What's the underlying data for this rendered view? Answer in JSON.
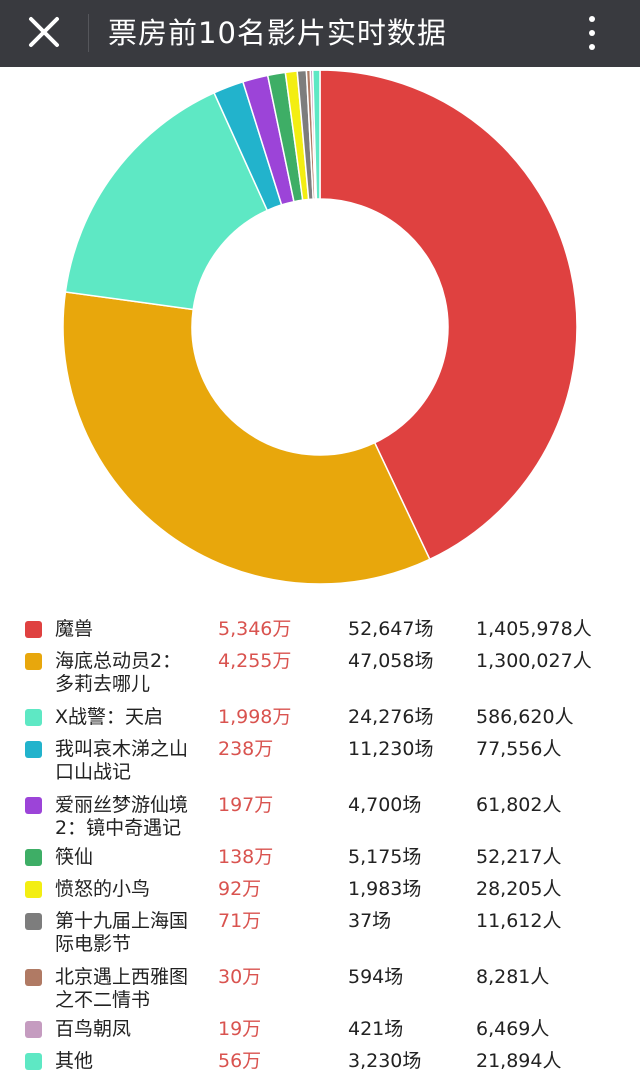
{
  "header": {
    "title": "票房前10名影片实时数据"
  },
  "chart_data": {
    "type": "pie",
    "donut": true,
    "unit_box_office": "万",
    "series": [
      {
        "name": "魔兽",
        "box_office": "5,346万",
        "shows": "52,647场",
        "audience": "1,405,978人",
        "value": 5346,
        "color": "#df4140"
      },
      {
        "name": "海底总动员2：多莉去哪儿",
        "box_office": "4,255万",
        "shows": "47,058场",
        "audience": "1,300,027人",
        "value": 4255,
        "color": "#e8a70c"
      },
      {
        "name": "X战警：天启",
        "box_office": "1,998万",
        "shows": "24,276场",
        "audience": "586,620人",
        "value": 1998,
        "color": "#5ee8c4"
      },
      {
        "name": "我叫哀木涕之山口山战记",
        "box_office": "238万",
        "shows": "11,230场",
        "audience": "77,556人",
        "value": 238,
        "color": "#22b3cc"
      },
      {
        "name": "爱丽丝梦游仙境2：镜中奇遇记",
        "box_office": "197万",
        "shows": "4,700场",
        "audience": "61,802人",
        "value": 197,
        "color": "#9c44d8"
      },
      {
        "name": "筷仙",
        "box_office": "138万",
        "shows": "5,175场",
        "audience": "52,217人",
        "value": 138,
        "color": "#3eae66"
      },
      {
        "name": "愤怒的小鸟",
        "box_office": "92万",
        "shows": "1,983场",
        "audience": "28,205人",
        "value": 92,
        "color": "#f3ee12"
      },
      {
        "name": "第十九届上海国际电影节",
        "box_office": "71万",
        "shows": "37场",
        "audience": "11,612人",
        "value": 71,
        "color": "#7d7d7d"
      },
      {
        "name": "北京遇上西雅图之不二情书",
        "box_office": "30万",
        "shows": "594场",
        "audience": "8,281人",
        "value": 30,
        "color": "#b07a64"
      },
      {
        "name": "百鸟朝凤",
        "box_office": "19万",
        "shows": "421场",
        "audience": "6,469人",
        "value": 19,
        "color": "#c59cc0"
      },
      {
        "name": "其他",
        "box_office": "56万",
        "shows": "3,230场",
        "audience": "21,894人",
        "value": 56,
        "color": "#5ee8c4"
      }
    ]
  },
  "legend_rows": [
    {
      "line1": "魔兽",
      "line2": ""
    },
    {
      "line1": "海底总动员2：",
      "line2": "多莉去哪儿"
    },
    {
      "line1": "X战警：天启",
      "line2": ""
    },
    {
      "line1": "我叫哀木涕之山",
      "line2": "口山战记"
    },
    {
      "line1": "爱丽丝梦游仙境",
      "line2": "2：镜中奇遇记"
    },
    {
      "line1": "筷仙",
      "line2": ""
    },
    {
      "line1": "愤怒的小鸟",
      "line2": ""
    },
    {
      "line1": "第十九届上海国",
      "line2": "际电影节"
    },
    {
      "line1": "北京遇上西雅图",
      "line2": "之不二情书"
    },
    {
      "line1": "百鸟朝凤",
      "line2": ""
    },
    {
      "line1": "其他",
      "line2": ""
    }
  ]
}
